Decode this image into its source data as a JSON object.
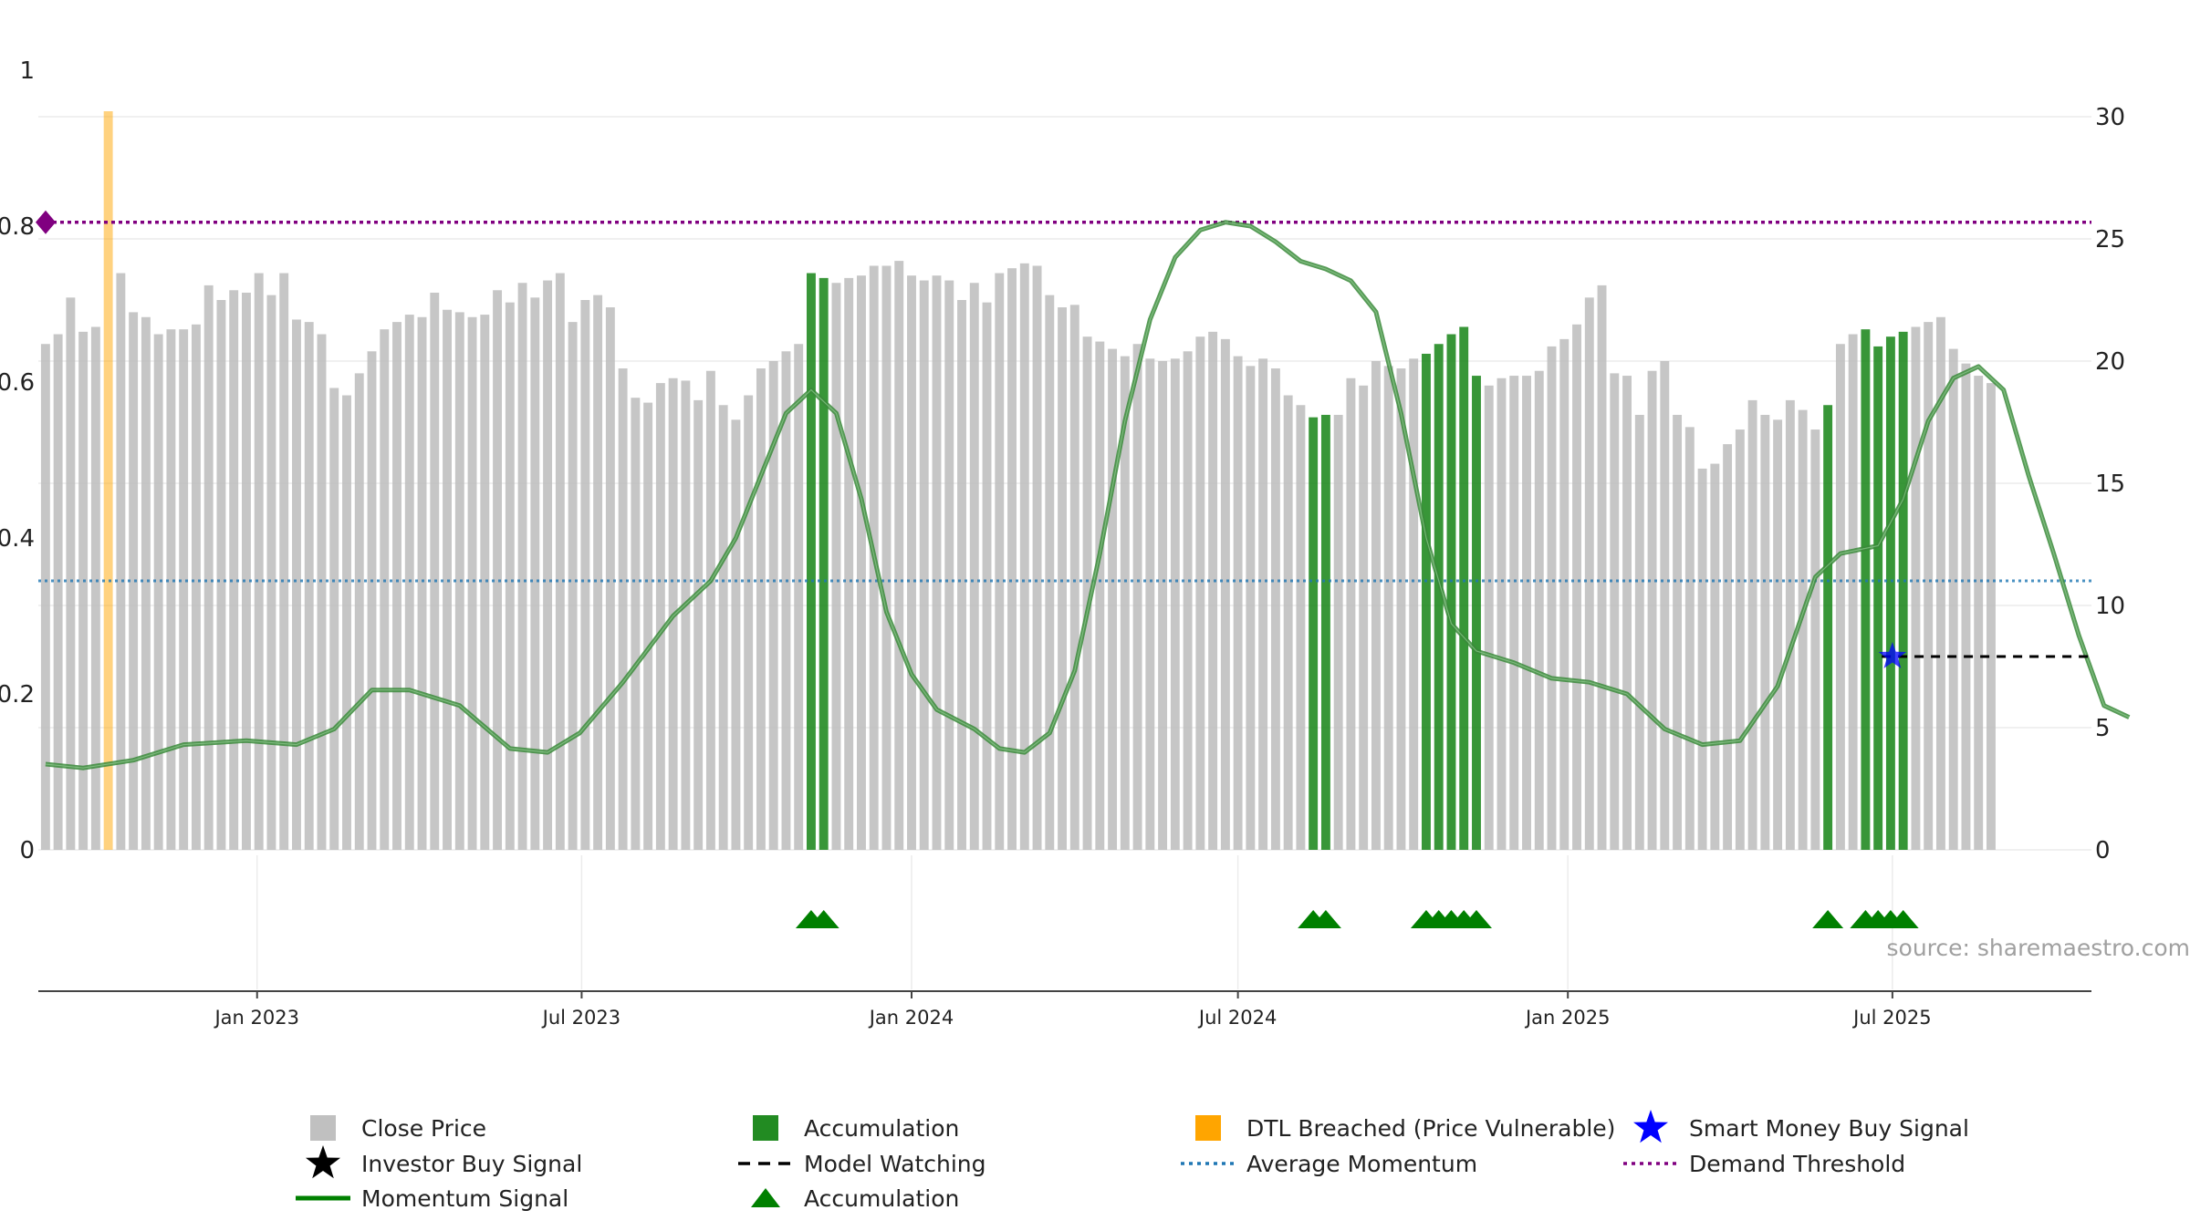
{
  "chart_data": {
    "type": "bar+line",
    "source_label": "source: sharemaestro.com",
    "left_axis": {
      "ylim": [
        0,
        1
      ],
      "ticks": [
        0,
        0.2,
        0.4,
        0.6,
        0.8,
        1
      ],
      "tick_labels": [
        "0",
        "0.2",
        "0.4",
        "0.6",
        "0.8",
        "1"
      ]
    },
    "right_axis": {
      "ylim": [
        0,
        30
      ],
      "ticks": [
        0,
        5,
        10,
        15,
        20,
        25,
        30
      ],
      "tick_labels": [
        "0",
        "5",
        "10",
        "15",
        "20",
        "25",
        "30"
      ]
    },
    "x_axis": {
      "start": "2022-09-01",
      "end": "2025-10-20",
      "ticks": [
        {
          "date": "2023-01-01",
          "label": "Jan 2023"
        },
        {
          "date": "2023-07-01",
          "label": "Jul 2023"
        },
        {
          "date": "2024-01-01",
          "label": "Jan 2024"
        },
        {
          "date": "2024-07-01",
          "label": "Jul 2024"
        },
        {
          "date": "2025-01-01",
          "label": "Jan 2025"
        },
        {
          "date": "2025-07-01",
          "label": "Jul 2025"
        }
      ]
    },
    "start_date": "2022-09-05",
    "bar_interval_days": 7,
    "close_prices": [
      20.7,
      21.1,
      22.6,
      21.2,
      21.4,
      25.5,
      23.6,
      22.0,
      21.8,
      21.1,
      21.3,
      21.3,
      21.5,
      23.1,
      22.5,
      22.9,
      22.8,
      23.6,
      22.7,
      23.6,
      21.7,
      21.6,
      21.1,
      18.9,
      18.6,
      19.5,
      20.4,
      21.3,
      21.6,
      21.9,
      21.8,
      22.8,
      22.1,
      22.0,
      21.8,
      21.9,
      22.9,
      22.4,
      23.2,
      22.6,
      23.3,
      23.6,
      21.6,
      22.5,
      22.7,
      22.2,
      19.7,
      18.5,
      18.3,
      19.1,
      19.3,
      19.2,
      18.4,
      19.6,
      18.2,
      17.6,
      18.6,
      19.7,
      20.0,
      20.4,
      20.7,
      23.6,
      23.4,
      23.2,
      23.4,
      23.5,
      23.9,
      23.9,
      24.1,
      23.5,
      23.3,
      23.5,
      23.3,
      22.5,
      23.2,
      22.4,
      23.6,
      23.8,
      24.0,
      23.9,
      22.7,
      22.2,
      22.3,
      21.0,
      20.8,
      20.5,
      20.2,
      20.7,
      20.1,
      20.0,
      20.1,
      20.4,
      21.0,
      21.2,
      20.9,
      20.2,
      19.8,
      20.1,
      19.7,
      18.6,
      18.2,
      17.7,
      17.8,
      17.8,
      19.3,
      19.0,
      20.0,
      19.8,
      19.7,
      20.1,
      20.3,
      20.7,
      21.1,
      21.4,
      19.4,
      19.0,
      19.3,
      19.4,
      19.4,
      19.6,
      20.6,
      20.9,
      21.5,
      22.6,
      23.1,
      19.5,
      19.4,
      17.8,
      19.6,
      20.0,
      17.8,
      17.3,
      15.6,
      15.8,
      16.6,
      17.2,
      18.4,
      17.8,
      17.6,
      18.4,
      18.0,
      17.2,
      18.2,
      20.7,
      21.1,
      21.3,
      20.6,
      21.0,
      21.2,
      21.4,
      21.6,
      21.8,
      20.5,
      19.9,
      19.4,
      19.1
    ],
    "accumulation_bar_indices": [
      61,
      62,
      101,
      102,
      110,
      111,
      112,
      113,
      114,
      142,
      145,
      146,
      147,
      148
    ],
    "dtl_breached_bar_indices": [
      5
    ],
    "momentum_signal": [
      [
        "2022-09-05",
        0.11
      ],
      [
        "2022-09-26",
        0.105
      ],
      [
        "2022-10-24",
        0.115
      ],
      [
        "2022-11-21",
        0.135
      ],
      [
        "2022-12-26",
        0.14
      ],
      [
        "2023-01-23",
        0.135
      ],
      [
        "2023-02-13",
        0.155
      ],
      [
        "2023-03-06",
        0.205
      ],
      [
        "2023-03-27",
        0.205
      ],
      [
        "2023-04-24",
        0.185
      ],
      [
        "2023-05-22",
        0.13
      ],
      [
        "2023-06-12",
        0.125
      ],
      [
        "2023-06-30",
        0.15
      ],
      [
        "2023-07-24",
        0.215
      ],
      [
        "2023-08-21",
        0.3
      ],
      [
        "2023-09-11",
        0.345
      ],
      [
        "2023-09-25",
        0.4
      ],
      [
        "2023-10-09",
        0.48
      ],
      [
        "2023-10-23",
        0.56
      ],
      [
        "2023-11-06",
        0.59
      ],
      [
        "2023-11-20",
        0.56
      ],
      [
        "2023-12-04",
        0.45
      ],
      [
        "2023-12-18",
        0.305
      ],
      [
        "2024-01-01",
        0.225
      ],
      [
        "2024-01-15",
        0.18
      ],
      [
        "2024-02-05",
        0.155
      ],
      [
        "2024-02-19",
        0.13
      ],
      [
        "2024-03-04",
        0.125
      ],
      [
        "2024-03-18",
        0.15
      ],
      [
        "2024-04-01",
        0.23
      ],
      [
        "2024-04-15",
        0.38
      ],
      [
        "2024-04-29",
        0.55
      ],
      [
        "2024-05-13",
        0.68
      ],
      [
        "2024-05-27",
        0.76
      ],
      [
        "2024-06-10",
        0.795
      ],
      [
        "2024-06-24",
        0.805
      ],
      [
        "2024-07-08",
        0.8
      ],
      [
        "2024-07-22",
        0.78
      ],
      [
        "2024-08-05",
        0.755
      ],
      [
        "2024-08-19",
        0.745
      ],
      [
        "2024-09-02",
        0.73
      ],
      [
        "2024-09-16",
        0.69
      ],
      [
        "2024-09-30",
        0.56
      ],
      [
        "2024-10-14",
        0.4
      ],
      [
        "2024-10-28",
        0.29
      ],
      [
        "2024-11-11",
        0.255
      ],
      [
        "2024-12-02",
        0.24
      ],
      [
        "2024-12-23",
        0.22
      ],
      [
        "2025-01-13",
        0.215
      ],
      [
        "2025-02-03",
        0.2
      ],
      [
        "2025-02-24",
        0.155
      ],
      [
        "2025-03-17",
        0.135
      ],
      [
        "2025-04-07",
        0.14
      ],
      [
        "2025-04-28",
        0.21
      ],
      [
        "2025-05-19",
        0.35
      ],
      [
        "2025-06-02",
        0.38
      ],
      [
        "2025-06-23",
        0.39
      ],
      [
        "2025-07-07",
        0.45
      ],
      [
        "2025-07-21",
        0.55
      ],
      [
        "2025-08-04",
        0.605
      ],
      [
        "2025-08-18",
        0.62
      ],
      [
        "2025-09-01",
        0.59
      ],
      [
        "2025-09-15",
        0.48
      ],
      [
        "2025-09-29",
        0.38
      ],
      [
        "2025-10-13",
        0.275
      ],
      [
        "2025-10-27",
        0.185
      ],
      [
        "2025-11-10",
        0.17
      ]
    ],
    "average_momentum": 0.345,
    "demand_threshold": 0.805,
    "model_watching_level": 0.248,
    "model_watching_range": [
      "2025-06-25",
      "2025-10-20"
    ],
    "smart_money_buy_signal": {
      "date": "2025-07-01",
      "value": 0.248
    },
    "demand_marker_value": 0.805,
    "accumulation_triangle_indices": [
      61,
      62,
      101,
      102,
      110,
      111,
      112,
      113,
      114,
      142,
      145,
      146,
      147,
      148
    ],
    "colors": {
      "close_price": "#c0c0c0",
      "accumulation": "#228b22",
      "dtl_breached": "#ffa500",
      "momentum": "#008000",
      "average_momentum": "#1f77b4",
      "demand_threshold": "#800080",
      "smart_money": "#0000ff",
      "model_watching": "#000000",
      "investor_buy": "#000000",
      "triangle": "#008000"
    },
    "legend": [
      {
        "key": "close",
        "label": "Close Price"
      },
      {
        "key": "accum_bar",
        "label": "Accumulation"
      },
      {
        "key": "dtl",
        "label": "DTL Breached (Price Vulnerable)"
      },
      {
        "key": "smart",
        "label": "Smart Money Buy Signal"
      },
      {
        "key": "investor",
        "label": "Investor Buy Signal"
      },
      {
        "key": "watching",
        "label": "Model Watching"
      },
      {
        "key": "avg",
        "label": "Average Momentum"
      },
      {
        "key": "demand",
        "label": "Demand Threshold"
      },
      {
        "key": "momentum",
        "label": "Momentum Signal"
      },
      {
        "key": "triangle",
        "label": "Accumulation"
      }
    ]
  }
}
